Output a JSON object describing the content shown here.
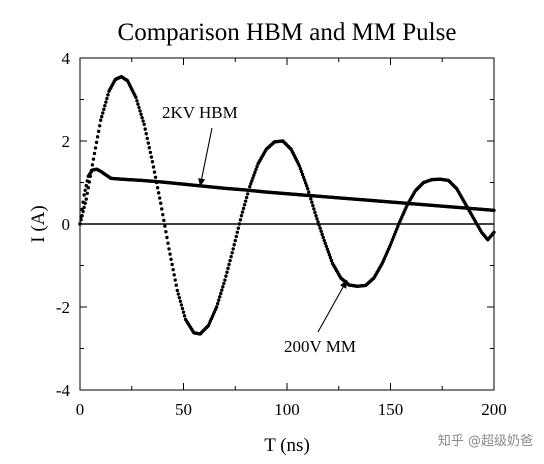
{
  "chart_data": {
    "type": "scatter",
    "title": "Comparison HBM and MM Pulse",
    "xlabel": "T (ns)",
    "ylabel": "I (A)",
    "xlim": [
      0,
      200
    ],
    "ylim": [
      -4,
      4
    ],
    "xticks": [
      "0",
      "50",
      "100",
      "150",
      "200"
    ],
    "yticks": [
      "4",
      "2",
      "0",
      "-2",
      "-4"
    ],
    "grid": false,
    "legend": "none",
    "marker_color": "#000000",
    "series": [
      {
        "label_text": "2KV HBM",
        "annotation_arrow_end": [
          58,
          0.9
        ],
        "x": [
          0,
          2,
          4,
          6,
          8,
          10,
          12,
          15,
          20,
          30,
          40,
          50,
          60,
          70,
          80,
          90,
          100,
          110,
          120,
          130,
          140,
          150,
          160,
          170,
          180,
          190,
          200
        ],
        "y": [
          0.0,
          0.7,
          1.15,
          1.3,
          1.32,
          1.27,
          1.2,
          1.1,
          1.08,
          1.05,
          1.01,
          0.96,
          0.91,
          0.86,
          0.82,
          0.77,
          0.73,
          0.69,
          0.65,
          0.61,
          0.57,
          0.53,
          0.49,
          0.45,
          0.41,
          0.37,
          0.33
        ]
      },
      {
        "label_text": "200V MM",
        "annotation_arrow_end": [
          129,
          -1.35
        ],
        "x": [
          0,
          3,
          7,
          10,
          14,
          17,
          20,
          23,
          27,
          31,
          35,
          39,
          43,
          47,
          51,
          55,
          58,
          62,
          66,
          70,
          74,
          78,
          82,
          86,
          90,
          94,
          98,
          102,
          106,
          110,
          114,
          118,
          122,
          126,
          130,
          134,
          138,
          142,
          146,
          150,
          154,
          158,
          162,
          166,
          170,
          174,
          178,
          182,
          186,
          190,
          194,
          197,
          200
        ],
        "y": [
          0.0,
          0.6,
          1.7,
          2.5,
          3.2,
          3.48,
          3.55,
          3.45,
          3.05,
          2.4,
          1.5,
          0.5,
          -0.6,
          -1.6,
          -2.3,
          -2.62,
          -2.65,
          -2.45,
          -2.0,
          -1.35,
          -0.6,
          0.2,
          0.9,
          1.45,
          1.8,
          1.98,
          2.0,
          1.8,
          1.4,
          0.85,
          0.2,
          -0.4,
          -0.95,
          -1.3,
          -1.47,
          -1.5,
          -1.48,
          -1.3,
          -0.95,
          -0.5,
          0.0,
          0.45,
          0.8,
          1.0,
          1.07,
          1.08,
          1.05,
          0.85,
          0.5,
          0.15,
          -0.2,
          -0.38,
          -0.2
        ]
      }
    ]
  },
  "watermark": "知乎 @超级奶爸"
}
